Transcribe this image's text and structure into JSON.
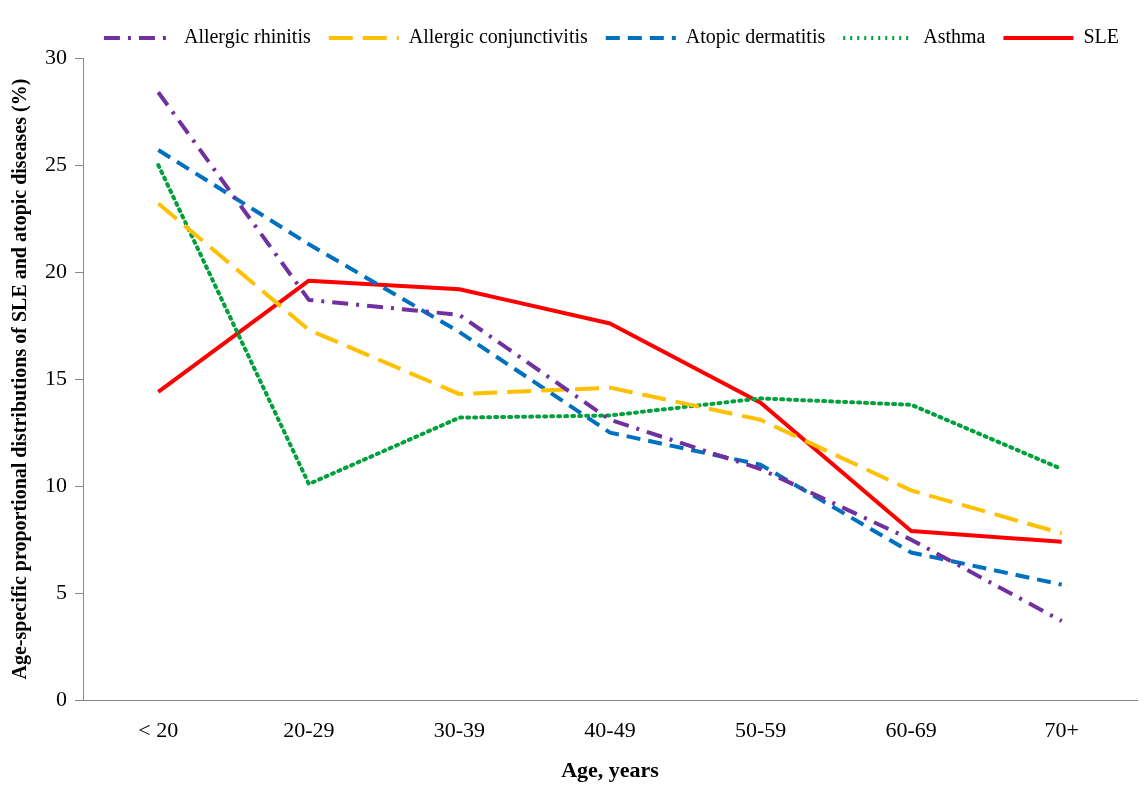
{
  "chart_data": {
    "type": "line",
    "xlabel": "Age, years",
    "ylabel": "Age-specific proportional distributions of SLE and atopic diseases (%)",
    "categories": [
      "< 20",
      "20-29",
      "30-39",
      "40-49",
      "50-59",
      "60-69",
      "70+"
    ],
    "ylim": [
      0,
      30
    ],
    "yticks": [
      0,
      5,
      10,
      15,
      20,
      25,
      30
    ],
    "grid": false,
    "legend": "top right",
    "marker": "none",
    "series": [
      {
        "name": "Allergic rhinitis",
        "color": "#7030a0",
        "line_style": "dashdot",
        "values": [
          28.4,
          18.7,
          18.0,
          13.1,
          10.8,
          7.5,
          3.7
        ]
      },
      {
        "name": "Allergic conjunctivitis",
        "color": "#ffc000",
        "line_style": "longdash",
        "values": [
          23.2,
          17.3,
          14.3,
          14.6,
          13.1,
          9.8,
          7.8
        ]
      },
      {
        "name": "Atopic dermatitis",
        "color": "#0070c0",
        "line_style": "dashed",
        "values": [
          25.7,
          21.3,
          17.2,
          12.5,
          11.0,
          6.9,
          5.4
        ]
      },
      {
        "name": "Asthma",
        "color": "#00a03c",
        "line_style": "dotted",
        "values": [
          25.0,
          10.1,
          13.2,
          13.3,
          14.1,
          13.8,
          10.8
        ]
      },
      {
        "name": "SLE",
        "color": "#ff0000",
        "line_style": "solid",
        "values": [
          14.4,
          19.6,
          19.2,
          17.6,
          13.9,
          7.9,
          7.4
        ]
      }
    ]
  }
}
